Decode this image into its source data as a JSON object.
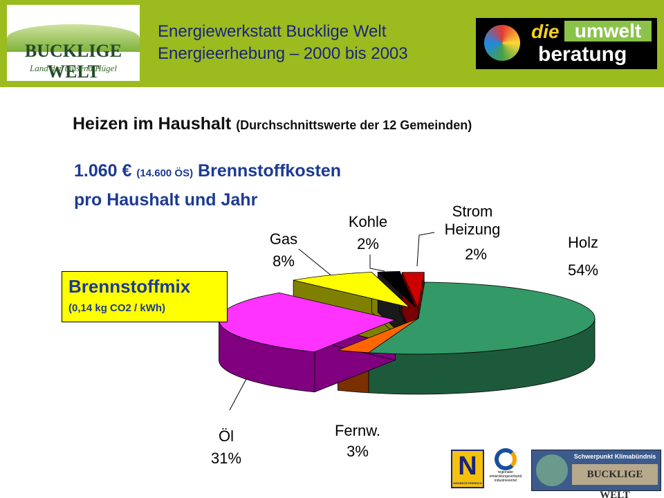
{
  "header": {
    "line1": "Energiewerkstatt Bucklige Welt",
    "line2": "Energieerhebung – 2000 bis 2003",
    "logo_left": {
      "name": "BUCKLIGE WELT",
      "tagline": "Land der tausend Hügel"
    },
    "logo_right": {
      "die": "die",
      "umwelt": "umwelt",
      "beratung": "beratung"
    }
  },
  "footer": {
    "badge": "N",
    "badge_sub": "NIEDERÖSTERREICH",
    "rmvi": "regionaler entwicklungsverband industrieviertel",
    "klima": "Schwerpunkt Klimabündnis",
    "klima_name": "BUCKLIGE WELT"
  },
  "chart_data": {
    "type": "pie",
    "title": "Heizen im Haushalt",
    "title_note": "(Durchschnittswerte der 12 Gemeinden)",
    "subtitle": {
      "amount": "1.060 €",
      "amount_note": "(14.600 ÖS)",
      "text1": "Brennstoffkosten",
      "text2": "pro Haushalt und Jahr"
    },
    "annotation": {
      "title": "Brennstoffmix",
      "note": "(0,14 kg CO2 / kWh)"
    },
    "categories": [
      "Holz",
      "Fernw.",
      "Öl",
      "Gas",
      "Kohle",
      "Strom Heizung"
    ],
    "values": [
      54,
      3,
      31,
      8,
      2,
      2
    ],
    "value_labels": [
      "54%",
      "3%",
      "31%",
      "8%",
      "2%",
      "2%"
    ],
    "colors": [
      "#339966",
      "#ff6600",
      "#ff33ff",
      "#ffff00",
      "#000000",
      "#cc0000"
    ],
    "side_colors": [
      "#1d5a3b",
      "#7a3000",
      "#800080",
      "#808000",
      "#1a1a1a",
      "#7a0000"
    ]
  }
}
